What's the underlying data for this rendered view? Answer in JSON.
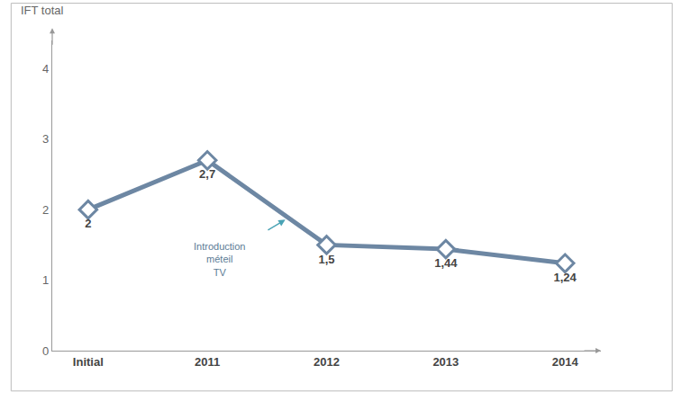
{
  "chart_data": {
    "type": "line",
    "y_label": "IFT total",
    "categories": [
      "Initial",
      "2011",
      "2012",
      "2013",
      "2014"
    ],
    "values": [
      2,
      2.7,
      1.5,
      1.44,
      1.24
    ],
    "value_labels": [
      "2",
      "2,7",
      "1,5",
      "1,44",
      "1,24"
    ],
    "data_labels": true,
    "color": "#6d87a3",
    "marker": "diamond",
    "ylim": [
      0,
      4.4
    ],
    "yticks": [
      0,
      1,
      2,
      3,
      4
    ],
    "grid": false,
    "annotations": [
      {
        "text": "Introduction\nméteil\nTV"
      }
    ]
  }
}
